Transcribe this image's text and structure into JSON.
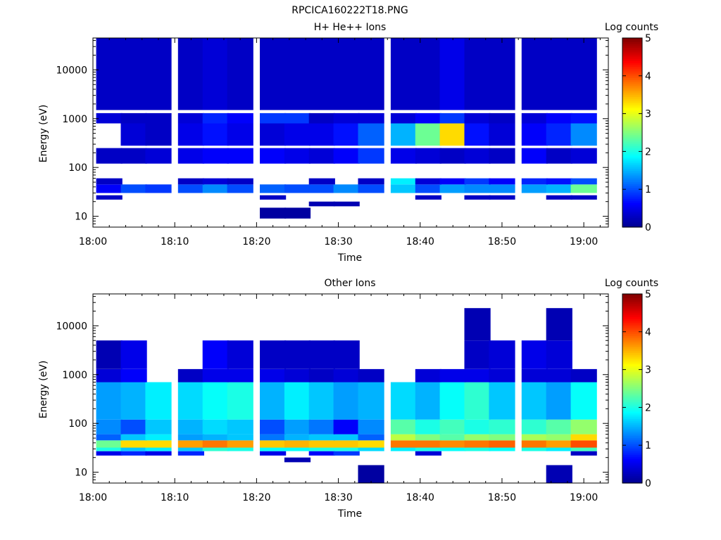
{
  "figure": {
    "title": "RPCICA160222T18.PNG"
  },
  "colormap": {
    "stops": [
      "#00008f",
      "#0000ff",
      "#0080ff",
      "#00ffff",
      "#80ff80",
      "#ffff00",
      "#ff8000",
      "#ff0000",
      "#800000"
    ]
  },
  "chart_data": [
    {
      "type": "heatmap",
      "title": "H+ He++ Ions",
      "xlabel": "Time",
      "ylabel": "Energy (eV)",
      "xlim": [
        "18:00",
        "19:03"
      ],
      "ylim": [
        6,
        45000
      ],
      "yscale": "log",
      "x_ticks": [
        "18:00",
        "18:10",
        "18:20",
        "18:30",
        "18:40",
        "18:50",
        "19:00"
      ],
      "y_ticks": [
        "10",
        "100",
        "1000",
        "10000"
      ],
      "colorbar": {
        "label": "Log counts",
        "ticks": [
          "0",
          "1",
          "2",
          "3",
          "4",
          "5"
        ],
        "range": [
          0,
          5
        ]
      },
      "time_bins": [
        "18:02",
        "18:05",
        "18:08",
        "18:12",
        "18:15",
        "18:18",
        "18:22",
        "18:25",
        "18:28",
        "18:31",
        "18:34",
        "18:38",
        "18:41",
        "18:44",
        "18:47",
        "18:50",
        "18:54",
        "18:57",
        "19:00"
      ],
      "bands": [
        {
          "energy_range": [
            22,
            27
          ],
          "levels": [
            0.3,
            null,
            null,
            null,
            null,
            null,
            0.3,
            null,
            null,
            null,
            null,
            null,
            0.3,
            null,
            0.3,
            0.3,
            null,
            0.3,
            0.3
          ]
        },
        {
          "energy_range": [
            30,
            45
          ],
          "levels": [
            0.6,
            1.0,
            0.9,
            1.0,
            1.3,
            1.0,
            1.1,
            1.0,
            1.0,
            1.3,
            1.0,
            1.6,
            1.0,
            1.4,
            1.3,
            1.3,
            1.4,
            1.5,
            2.4
          ]
        },
        {
          "energy_range": [
            45,
            60
          ],
          "levels": [
            0.3,
            null,
            null,
            0.3,
            0.4,
            0.3,
            null,
            null,
            0.3,
            null,
            0.3,
            1.8,
            0.4,
            0.6,
            0.9,
            0.6,
            0.8,
            0.7,
            1.0
          ]
        },
        {
          "energy_range": [
            120,
            250
          ],
          "levels": [
            0.3,
            0.3,
            0.4,
            0.5,
            0.6,
            0.6,
            0.6,
            0.5,
            0.4,
            0.6,
            0.9,
            0.5,
            0.4,
            0.3,
            0.4,
            0.3,
            0.6,
            0.3,
            0.4
          ]
        },
        {
          "energy_range": [
            280,
            800
          ],
          "levels": [
            null,
            0.4,
            0.3,
            0.5,
            0.7,
            0.5,
            0.4,
            0.5,
            0.5,
            0.7,
            1.1,
            1.5,
            2.4,
            3.3,
            0.7,
            0.4,
            0.6,
            0.8,
            1.3
          ]
        },
        {
          "energy_range": [
            800,
            1300
          ],
          "levels": [
            0.4,
            0.3,
            0.3,
            0.4,
            0.8,
            0.6,
            0.9,
            0.9,
            0.3,
            0.4,
            0.4,
            0.4,
            0.6,
            0.9,
            0.4,
            0.3,
            0.4,
            0.6,
            0.7
          ]
        },
        {
          "energy_range": [
            1500,
            45000
          ],
          "levels": [
            0.3,
            0.3,
            0.3,
            0.3,
            0.4,
            0.3,
            0.3,
            0.3,
            0.3,
            0.3,
            0.3,
            0.3,
            0.3,
            0.5,
            0.3,
            0.3,
            0.3,
            0.3,
            0.3
          ]
        },
        {
          "energy_range": [
            9,
            15
          ],
          "levels": [
            null,
            null,
            null,
            null,
            null,
            null,
            0.1,
            0.1,
            null,
            null,
            null,
            null,
            null,
            null,
            null,
            null,
            null,
            null,
            null
          ]
        },
        {
          "energy_range": [
            16,
            20
          ],
          "levels": [
            null,
            null,
            null,
            null,
            null,
            null,
            null,
            null,
            0.2,
            0.2,
            null,
            null,
            null,
            null,
            null,
            null,
            null,
            null,
            null
          ]
        }
      ]
    },
    {
      "type": "heatmap",
      "title": "Other Ions",
      "xlabel": "Time",
      "ylabel": "Energy (eV)",
      "xlim": [
        "18:00",
        "19:03"
      ],
      "ylim": [
        6,
        45000
      ],
      "yscale": "log",
      "x_ticks": [
        "18:00",
        "18:10",
        "18:20",
        "18:30",
        "18:40",
        "18:50",
        "19:00"
      ],
      "y_ticks": [
        "10",
        "100",
        "1000",
        "10000"
      ],
      "colorbar": {
        "label": "Log counts",
        "ticks": [
          "0",
          "1",
          "2",
          "3",
          "4",
          "5"
        ],
        "range": [
          0,
          5
        ]
      },
      "time_bins": [
        "18:02",
        "18:05",
        "18:08",
        "18:12",
        "18:15",
        "18:18",
        "18:22",
        "18:25",
        "18:28",
        "18:31",
        "18:34",
        "18:38",
        "18:41",
        "18:44",
        "18:47",
        "18:50",
        "18:54",
        "18:57",
        "19:00"
      ],
      "bands": [
        {
          "energy_range": [
            22,
            27
          ],
          "levels": [
            0.5,
            0.8,
            0.5,
            0.8,
            null,
            null,
            0.5,
            null,
            0.6,
            0.9,
            null,
            null,
            0.4,
            null,
            null,
            null,
            null,
            null,
            0.3
          ]
        },
        {
          "energy_range": [
            27,
            32
          ],
          "levels": [
            2.0,
            1.6,
            1.8,
            1.6,
            2.1,
            2.0,
            1.9,
            1.9,
            2.0,
            2.0,
            1.7,
            1.8,
            2.0,
            1.9,
            2.0,
            1.9,
            2.0,
            1.8,
            2.2
          ]
        },
        {
          "energy_range": [
            32,
            45
          ],
          "levels": [
            2.4,
            3.3,
            3.3,
            3.6,
            3.8,
            3.6,
            3.4,
            3.5,
            3.4,
            3.4,
            3.3,
            3.8,
            3.8,
            3.7,
            3.8,
            3.9,
            3.8,
            3.6,
            4.0
          ]
        },
        {
          "energy_range": [
            45,
            60
          ],
          "levels": [
            1.1,
            1.6,
            1.8,
            1.4,
            1.5,
            1.6,
            1.2,
            1.5,
            1.6,
            1.6,
            1.1,
            2.8,
            2.5,
            2.3,
            2.6,
            2.5,
            2.7,
            2.6,
            3.3
          ]
        },
        {
          "energy_range": [
            60,
            120
          ],
          "levels": [
            1.3,
            1.0,
            1.6,
            1.5,
            1.7,
            1.6,
            1.0,
            1.4,
            1.2,
            0.6,
            1.3,
            2.3,
            2.0,
            2.2,
            2.0,
            2.1,
            2.1,
            2.3,
            2.6
          ]
        },
        {
          "energy_range": [
            120,
            700
          ],
          "levels": [
            1.4,
            1.5,
            1.8,
            1.7,
            1.9,
            2.0,
            1.5,
            1.8,
            1.6,
            1.4,
            1.5,
            1.7,
            1.5,
            1.9,
            2.1,
            1.6,
            1.6,
            1.4,
            1.9
          ]
        },
        {
          "energy_range": [
            700,
            1300
          ],
          "levels": [
            0.4,
            0.6,
            null,
            0.3,
            0.5,
            0.5,
            0.5,
            0.4,
            0.3,
            0.4,
            0.3,
            null,
            0.4,
            0.5,
            0.5,
            0.4,
            0.4,
            0.4,
            0.3
          ]
        },
        {
          "energy_range": [
            1300,
            5000
          ],
          "levels": [
            0.2,
            0.5,
            null,
            null,
            0.6,
            0.4,
            0.3,
            0.3,
            0.3,
            0.3,
            null,
            null,
            null,
            null,
            0.3,
            0.4,
            0.5,
            0.4,
            null
          ]
        },
        {
          "energy_range": [
            5000,
            23000
          ],
          "levels": [
            null,
            null,
            null,
            null,
            null,
            null,
            null,
            null,
            null,
            null,
            null,
            null,
            null,
            null,
            0.2,
            null,
            null,
            0.2,
            null
          ]
        },
        {
          "energy_range": [
            6,
            14
          ],
          "levels": [
            null,
            null,
            null,
            null,
            null,
            null,
            null,
            null,
            null,
            null,
            0.1,
            null,
            null,
            null,
            null,
            null,
            null,
            0.2,
            null
          ]
        },
        {
          "energy_range": [
            16,
            20
          ],
          "levels": [
            null,
            null,
            null,
            null,
            null,
            null,
            null,
            0.2,
            null,
            null,
            null,
            null,
            null,
            null,
            null,
            null,
            null,
            null,
            null
          ]
        }
      ]
    }
  ]
}
